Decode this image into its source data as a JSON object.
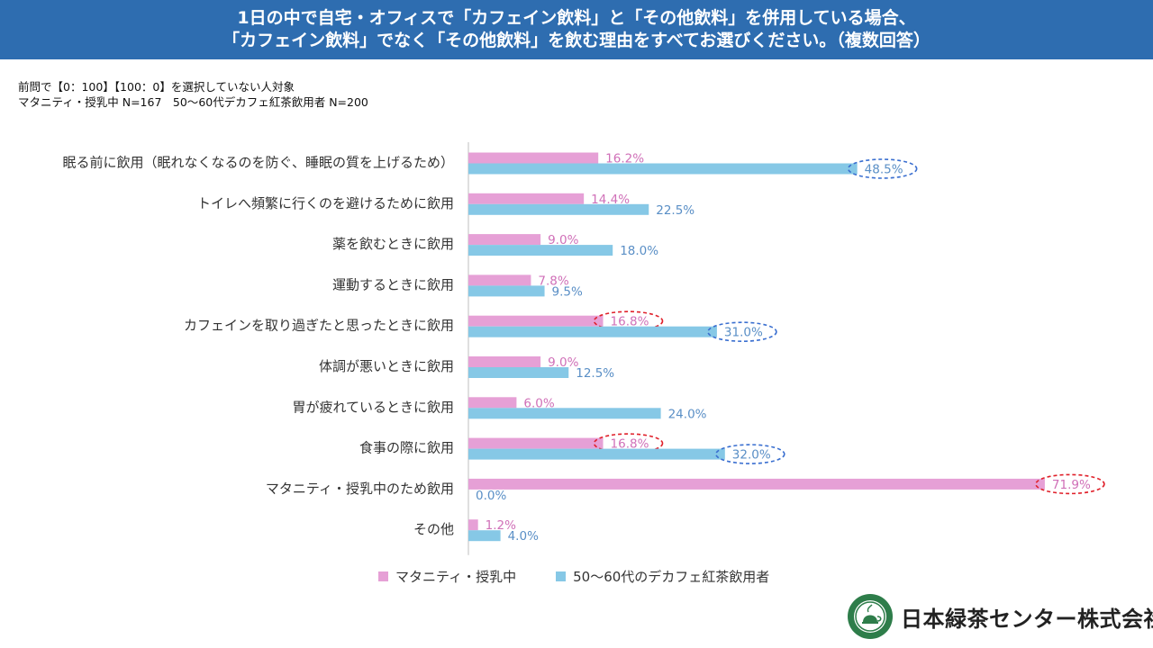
{
  "header": {
    "title_line1": "1日の中で自宅・オフィスで「カフェイン飲料」と「その他飲料」を併用している場合、",
    "title_line2": "「カフェイン飲料」でなく「その他飲料」を飲む理由をすべてお選びください。（複数回答）"
  },
  "notes": {
    "line1": "前問で【0：100】【100：0】を選択していない人対象",
    "line2": "マタニティ・授乳中 N=167　50～60代デカフェ紅茶飲用者 N=200"
  },
  "chart_data": {
    "type": "bar",
    "orientation": "horizontal",
    "categories": [
      "眠る前に飲用（眠れなくなるのを防ぐ、睡眠の質を上げるため）",
      "トイレへ頻繁に行くのを避けるために飲用",
      "薬を飲むときに飲用",
      "運動するときに飲用",
      "カフェインを取り過ぎたと思ったときに飲用",
      "体調が悪いときに飲用",
      "胃が疲れているときに飲用",
      "食事の際に飲用",
      "マタニティ・授乳中のため飲用",
      "その他"
    ],
    "series": [
      {
        "name": "マタニティ・授乳中",
        "color": "#e6a0d6",
        "label_color": "#d070b8",
        "values": [
          16.2,
          14.4,
          9.0,
          7.8,
          16.8,
          9.0,
          6.0,
          16.8,
          71.9,
          1.2
        ],
        "labels": [
          "16.2%",
          "14.4%",
          "9.0%",
          "7.8%",
          "16.8%",
          "9.0%",
          "6.0%",
          "16.8%",
          "71.9%",
          "1.2%"
        ],
        "highlighted": [
          4,
          7,
          8
        ],
        "highlight_color": "#e0202a"
      },
      {
        "name": "50～60代のデカフェ紅茶飲用者",
        "color": "#86c8e6",
        "label_color": "#5a8fc6",
        "values": [
          48.5,
          22.5,
          18.0,
          9.5,
          31.0,
          12.5,
          24.0,
          32.0,
          0.0,
          4.0
        ],
        "labels": [
          "48.5%",
          "22.5%",
          "18.0%",
          "9.5%",
          "31.0%",
          "12.5%",
          "24.0%",
          "32.0%",
          "0.0%",
          "4.0%"
        ],
        "highlighted": [
          0,
          4,
          7
        ],
        "highlight_color": "#3a6fd0"
      }
    ],
    "xlim": [
      0,
      80
    ],
    "grid": false,
    "legend_position": "bottom"
  },
  "legend": {
    "series1": "マタニティ・授乳中",
    "series2": "50～60代のデカフェ紅茶飲用者"
  },
  "logo": {
    "company": "日本緑茶センター株式会社",
    "reg": "®",
    "mark_text": "THE FINEST TEAS"
  }
}
